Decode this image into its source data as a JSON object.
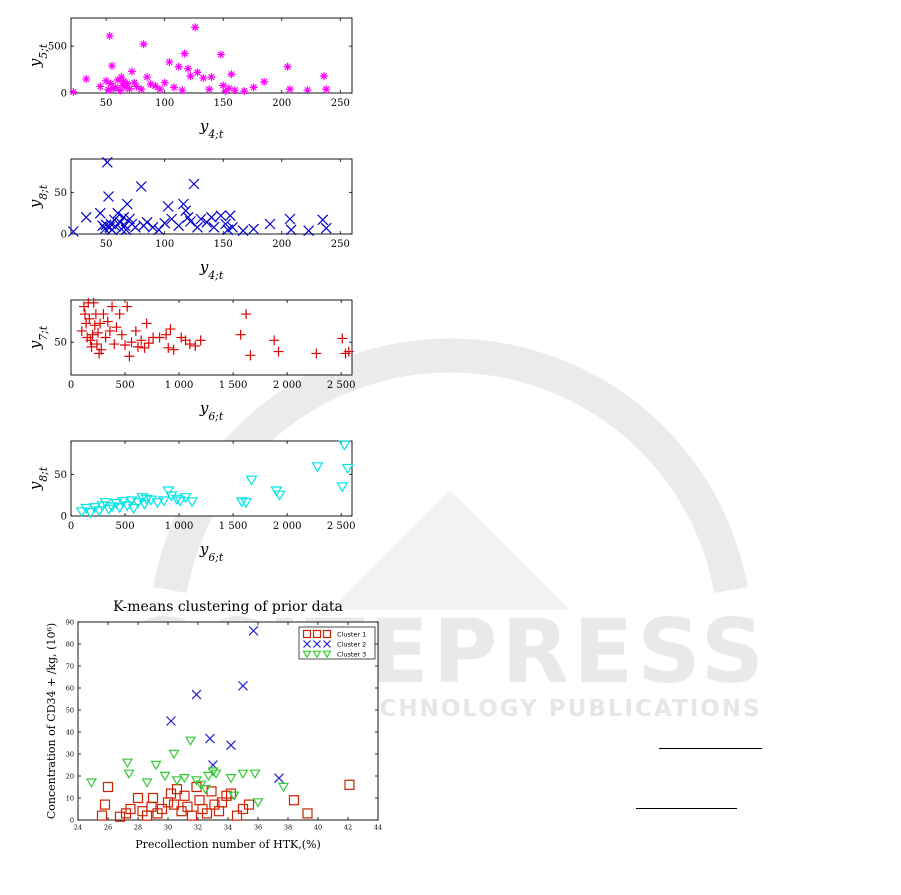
{
  "watermark": {
    "line1": "SCITEPRESS",
    "line2": "SCIENCE AND TECHNOLOGY PUBLICATIONS",
    "color": "#e3e3e3"
  },
  "chart_data": [
    {
      "type": "scatter",
      "title": "",
      "xlabel": "y4;t",
      "ylabel": "y5;t",
      "xlim": [
        20,
        260
      ],
      "ylim": [
        0,
        800
      ],
      "xticks": [
        50,
        100,
        150,
        200,
        250
      ],
      "yticks": [
        0,
        500
      ],
      "marker": "asterisk",
      "color": "#ff00ff",
      "points": [
        [
          22,
          10
        ],
        [
          33,
          150
        ],
        [
          45,
          70
        ],
        [
          50,
          130
        ],
        [
          52,
          35
        ],
        [
          53,
          610
        ],
        [
          54,
          100
        ],
        [
          55,
          290
        ],
        [
          56,
          45
        ],
        [
          58,
          60
        ],
        [
          60,
          140
        ],
        [
          62,
          25
        ],
        [
          63,
          170
        ],
        [
          64,
          80
        ],
        [
          65,
          125
        ],
        [
          67,
          60
        ],
        [
          68,
          100
        ],
        [
          70,
          45
        ],
        [
          72,
          230
        ],
        [
          74,
          110
        ],
        [
          76,
          70
        ],
        [
          80,
          40
        ],
        [
          82,
          520
        ],
        [
          85,
          170
        ],
        [
          88,
          95
        ],
        [
          92,
          75
        ],
        [
          96,
          40
        ],
        [
          100,
          110
        ],
        [
          104,
          330
        ],
        [
          108,
          60
        ],
        [
          112,
          280
        ],
        [
          115,
          30
        ],
        [
          117,
          420
        ],
        [
          120,
          260
        ],
        [
          122,
          180
        ],
        [
          126,
          700
        ],
        [
          128,
          220
        ],
        [
          133,
          160
        ],
        [
          138,
          40
        ],
        [
          140,
          170
        ],
        [
          148,
          410
        ],
        [
          150,
          80
        ],
        [
          152,
          20
        ],
        [
          155,
          50
        ],
        [
          157,
          200
        ],
        [
          160,
          30
        ],
        [
          168,
          20
        ],
        [
          176,
          60
        ],
        [
          185,
          120
        ],
        [
          205,
          280
        ],
        [
          207,
          40
        ],
        [
          222,
          30
        ],
        [
          236,
          180
        ],
        [
          238,
          40
        ]
      ]
    },
    {
      "type": "scatter",
      "title": "",
      "xlabel": "y4;t",
      "ylabel": "y8;t",
      "xlim": [
        20,
        260
      ],
      "ylim": [
        0,
        90
      ],
      "xticks": [
        50,
        100,
        150,
        200,
        250
      ],
      "yticks": [
        0,
        50
      ],
      "marker": "x",
      "color": "#0000cc",
      "points": [
        [
          22,
          3
        ],
        [
          33,
          20
        ],
        [
          45,
          25
        ],
        [
          47,
          10
        ],
        [
          49,
          6
        ],
        [
          50,
          11
        ],
        [
          51,
          86
        ],
        [
          52,
          45
        ],
        [
          53,
          8
        ],
        [
          54,
          12
        ],
        [
          55,
          5
        ],
        [
          57,
          17
        ],
        [
          58,
          9
        ],
        [
          60,
          25
        ],
        [
          62,
          14
        ],
        [
          63,
          6
        ],
        [
          65,
          20
        ],
        [
          66,
          10
        ],
        [
          67,
          5
        ],
        [
          68,
          36
        ],
        [
          70,
          18
        ],
        [
          72,
          12
        ],
        [
          75,
          8
        ],
        [
          80,
          57
        ],
        [
          82,
          10
        ],
        [
          85,
          14
        ],
        [
          90,
          8
        ],
        [
          95,
          5
        ],
        [
          100,
          13
        ],
        [
          103,
          33
        ],
        [
          106,
          18
        ],
        [
          112,
          10
        ],
        [
          116,
          36
        ],
        [
          118,
          28
        ],
        [
          120,
          20
        ],
        [
          122,
          15
        ],
        [
          125,
          60
        ],
        [
          128,
          8
        ],
        [
          131,
          18
        ],
        [
          136,
          14
        ],
        [
          140,
          20
        ],
        [
          142,
          8
        ],
        [
          148,
          22
        ],
        [
          152,
          12
        ],
        [
          154,
          5
        ],
        [
          156,
          22
        ],
        [
          158,
          8
        ],
        [
          167,
          4
        ],
        [
          176,
          6
        ],
        [
          190,
          12
        ],
        [
          207,
          18
        ],
        [
          208,
          5
        ],
        [
          223,
          4
        ],
        [
          235,
          17
        ],
        [
          238,
          7
        ]
      ]
    },
    {
      "type": "scatter",
      "title": "",
      "xlabel": "y6;t",
      "ylabel": "y7;t",
      "xlim": [
        0,
        2600
      ],
      "ylim": [
        15,
        95
      ],
      "xticks": [
        0,
        500,
        1000,
        1500,
        2000,
        2500
      ],
      "xtick_labels": [
        "0",
        "500",
        "1 000",
        "1 500",
        "2 000",
        "2 500"
      ],
      "yticks": [
        50
      ],
      "marker": "plus",
      "color": "#dd0000",
      "points": [
        [
          100,
          62
        ],
        [
          120,
          88
        ],
        [
          130,
          80
        ],
        [
          140,
          70
        ],
        [
          150,
          55
        ],
        [
          160,
          92
        ],
        [
          170,
          75
        ],
        [
          180,
          52
        ],
        [
          190,
          45
        ],
        [
          200,
          58
        ],
        [
          210,
          92
        ],
        [
          220,
          68
        ],
        [
          230,
          80
        ],
        [
          240,
          48
        ],
        [
          250,
          60
        ],
        [
          260,
          38
        ],
        [
          270,
          70
        ],
        [
          280,
          42
        ],
        [
          300,
          80
        ],
        [
          320,
          55
        ],
        [
          340,
          72
        ],
        [
          360,
          62
        ],
        [
          380,
          88
        ],
        [
          400,
          48
        ],
        [
          420,
          66
        ],
        [
          450,
          80
        ],
        [
          470,
          58
        ],
        [
          500,
          47
        ],
        [
          520,
          88
        ],
        [
          540,
          35
        ],
        [
          560,
          50
        ],
        [
          600,
          62
        ],
        [
          620,
          45
        ],
        [
          650,
          52
        ],
        [
          680,
          44
        ],
        [
          700,
          70
        ],
        [
          720,
          49
        ],
        [
          760,
          55
        ],
        [
          820,
          55
        ],
        [
          880,
          58
        ],
        [
          900,
          44
        ],
        [
          920,
          64
        ],
        [
          950,
          42
        ],
        [
          1020,
          55
        ],
        [
          1060,
          52
        ],
        [
          1100,
          48
        ],
        [
          1150,
          46
        ],
        [
          1200,
          52
        ],
        [
          1570,
          58
        ],
        [
          1620,
          80
        ],
        [
          1660,
          36
        ],
        [
          1880,
          52
        ],
        [
          1920,
          40
        ],
        [
          2270,
          38
        ],
        [
          2510,
          54
        ],
        [
          2540,
          38
        ],
        [
          2570,
          40
        ]
      ]
    },
    {
      "type": "scatter",
      "title": "",
      "xlabel": "y6;t",
      "ylabel": "y8;t",
      "xlim": [
        0,
        2600
      ],
      "ylim": [
        0,
        90
      ],
      "xticks": [
        0,
        500,
        1000,
        1500,
        2000,
        2500
      ],
      "xtick_labels": [
        "0",
        "500",
        "1 000",
        "1 500",
        "2 000",
        "2 500"
      ],
      "yticks": [
        0,
        50
      ],
      "marker": "triangle-down",
      "color": "#00e5e5",
      "points": [
        [
          100,
          5
        ],
        [
          140,
          9
        ],
        [
          180,
          4
        ],
        [
          220,
          10
        ],
        [
          260,
          6
        ],
        [
          290,
          12
        ],
        [
          320,
          16
        ],
        [
          350,
          8
        ],
        [
          380,
          11
        ],
        [
          420,
          15
        ],
        [
          450,
          10
        ],
        [
          480,
          17
        ],
        [
          520,
          12
        ],
        [
          560,
          18
        ],
        [
          580,
          9
        ],
        [
          620,
          16
        ],
        [
          660,
          22
        ],
        [
          680,
          14
        ],
        [
          700,
          20
        ],
        [
          740,
          19
        ],
        [
          800,
          16
        ],
        [
          860,
          18
        ],
        [
          900,
          30
        ],
        [
          930,
          24
        ],
        [
          980,
          20
        ],
        [
          1010,
          18
        ],
        [
          1060,
          22
        ],
        [
          1120,
          17
        ],
        [
          1580,
          17
        ],
        [
          1620,
          16
        ],
        [
          1670,
          43
        ],
        [
          1900,
          30
        ],
        [
          1930,
          25
        ],
        [
          2280,
          59
        ],
        [
          2510,
          35
        ],
        [
          2530,
          85
        ],
        [
          2560,
          57
        ]
      ]
    },
    {
      "type": "scatter",
      "title": "K-means clustering of prior data",
      "xlabel": "Precollection number of HTK,(%)",
      "ylabel": "Concentration of CD34 + /kg, (10⁶)",
      "xlim": [
        24,
        44
      ],
      "ylim": [
        0,
        90
      ],
      "xticks": [
        24,
        26,
        28,
        30,
        32,
        34,
        36,
        38,
        40,
        42,
        44
      ],
      "yticks": [
        0,
        10,
        20,
        30,
        40,
        50,
        60,
        70,
        80,
        90
      ],
      "legend": "top-right",
      "series": [
        {
          "name": "Cluster 1",
          "marker": "square",
          "color": "#cc2200",
          "points": [
            [
              25.6,
              2
            ],
            [
              25.8,
              7
            ],
            [
              26.0,
              15
            ],
            [
              26.8,
              1.5
            ],
            [
              27.2,
              3
            ],
            [
              27.5,
              5
            ],
            [
              28.0,
              10
            ],
            [
              28.3,
              4
            ],
            [
              28.6,
              2
            ],
            [
              28.9,
              6
            ],
            [
              29.0,
              10
            ],
            [
              29.3,
              3
            ],
            [
              29.6,
              5
            ],
            [
              30.0,
              8
            ],
            [
              30.2,
              12
            ],
            [
              30.4,
              7
            ],
            [
              30.6,
              14
            ],
            [
              30.9,
              4
            ],
            [
              31.1,
              11
            ],
            [
              31.3,
              6
            ],
            [
              31.6,
              2
            ],
            [
              31.9,
              15
            ],
            [
              32.1,
              9
            ],
            [
              32.3,
              5
            ],
            [
              32.6,
              3
            ],
            [
              32.9,
              13
            ],
            [
              33.1,
              7
            ],
            [
              33.4,
              4
            ],
            [
              33.6,
              8
            ],
            [
              33.9,
              11
            ],
            [
              34.2,
              12
            ],
            [
              34.6,
              2
            ],
            [
              35.0,
              5
            ],
            [
              35.4,
              7
            ],
            [
              38.4,
              9
            ],
            [
              39.3,
              3
            ],
            [
              42.1,
              16
            ]
          ]
        },
        {
          "name": "Cluster 2",
          "marker": "x",
          "color": "#2222cc",
          "points": [
            [
              30.2,
              45
            ],
            [
              31.9,
              57
            ],
            [
              32.8,
              37
            ],
            [
              33.0,
              25
            ],
            [
              34.2,
              34
            ],
            [
              35.0,
              61
            ],
            [
              35.7,
              86
            ],
            [
              37.4,
              19
            ]
          ]
        },
        {
          "name": "Cluster 3",
          "marker": "triangle-down",
          "color": "#33cc33",
          "points": [
            [
              24.9,
              17
            ],
            [
              27.3,
              26
            ],
            [
              27.4,
              21
            ],
            [
              28.6,
              17
            ],
            [
              29.2,
              25
            ],
            [
              29.8,
              20
            ],
            [
              30.4,
              30
            ],
            [
              30.6,
              18
            ],
            [
              31.1,
              19
            ],
            [
              31.5,
              36
            ],
            [
              31.9,
              18
            ],
            [
              32.2,
              16
            ],
            [
              32.5,
              14
            ],
            [
              32.7,
              20
            ],
            [
              33.0,
              22
            ],
            [
              33.2,
              21
            ],
            [
              34.2,
              19
            ],
            [
              34.4,
              11
            ],
            [
              35.0,
              21
            ],
            [
              35.8,
              21
            ],
            [
              36.0,
              8
            ],
            [
              37.7,
              15
            ]
          ]
        }
      ]
    }
  ]
}
